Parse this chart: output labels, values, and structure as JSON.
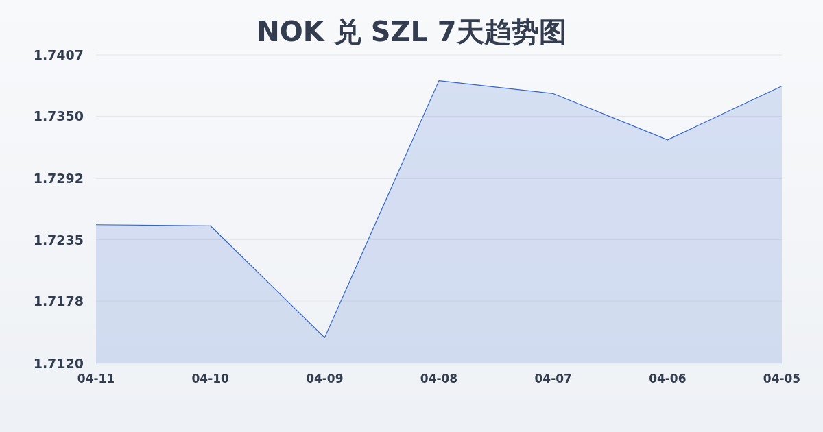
{
  "chart_data": {
    "type": "area",
    "title": "NOK 兑 SZL 7天趋势图",
    "categories": [
      "04-11",
      "04-10",
      "04-09",
      "04-08",
      "04-07",
      "04-06",
      "04-05"
    ],
    "series": [
      {
        "color": "#3366cc",
        "values": [
          1.7249,
          1.7248,
          1.7144,
          1.7383,
          1.7371,
          1.7328,
          1.7378
        ]
      }
    ],
    "ylim": [
      1.712,
      1.7407
    ],
    "yticks": [
      {
        "value": 1.712,
        "label": "1.7120"
      },
      {
        "value": 1.7178,
        "label": "1.7178"
      },
      {
        "value": 1.7235,
        "label": "1.7235"
      },
      {
        "value": 1.7292,
        "label": "1.7292"
      },
      {
        "value": 1.735,
        "label": "1.7350"
      },
      {
        "value": 1.7407,
        "label": "1.7407"
      }
    ],
    "grid": "y",
    "marker": "none"
  }
}
